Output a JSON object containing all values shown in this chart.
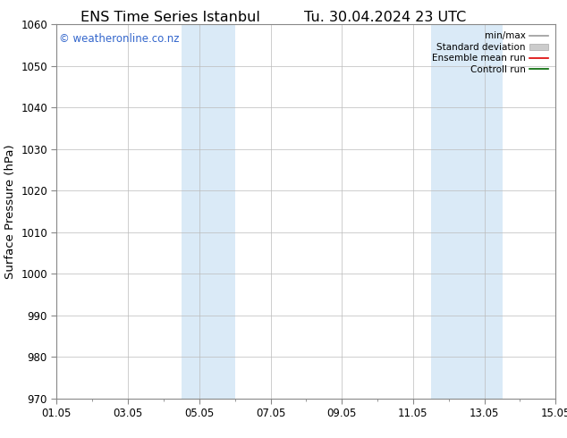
{
  "title_left": "ENS Time Series Istanbul",
  "title_right": "Tu. 30.04.2024 23 UTC",
  "ylabel": "Surface Pressure (hPa)",
  "ylim": [
    970,
    1060
  ],
  "yticks": [
    970,
    980,
    990,
    1000,
    1010,
    1020,
    1030,
    1040,
    1050,
    1060
  ],
  "xlim_start": 0.0,
  "xlim_end": 14.0,
  "xtick_positions": [
    0,
    2,
    4,
    6,
    8,
    10,
    12,
    14
  ],
  "xtick_labels": [
    "01.05",
    "03.05",
    "05.05",
    "07.05",
    "09.05",
    "11.05",
    "13.05",
    "15.05"
  ],
  "shaded_bands": [
    {
      "x_start": 3.5,
      "x_end": 5.0
    },
    {
      "x_start": 10.5,
      "x_end": 12.5
    }
  ],
  "shaded_color": "#daeaf7",
  "watermark_text": "© weatheronline.co.nz",
  "watermark_color": "#3366cc",
  "background_color": "#ffffff",
  "plot_bg_color": "#ffffff",
  "grid_color": "#bbbbbb",
  "legend_items": [
    {
      "label": "min/max",
      "color": "#999999",
      "lw": 1.2
    },
    {
      "label": "Standard deviation",
      "color": "#cccccc",
      "lw": 6
    },
    {
      "label": "Ensemble mean run",
      "color": "#dd0000",
      "lw": 1.2
    },
    {
      "label": "Controll run",
      "color": "#006600",
      "lw": 1.2
    }
  ],
  "title_fontsize": 11.5,
  "tick_fontsize": 8.5,
  "ylabel_fontsize": 9.5,
  "watermark_fontsize": 8.5,
  "legend_fontsize": 7.5,
  "title_font": "DejaVu Sans",
  "label_font": "DejaVu Sans"
}
